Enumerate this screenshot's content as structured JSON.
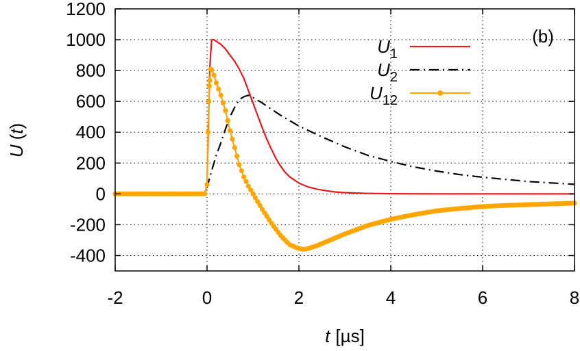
{
  "chart_data": {
    "type": "line",
    "annotation": "(b)",
    "xlabel_var": "t",
    "xlabel_unit": "[µs]",
    "ylabel_var": "U",
    "ylabel_arg": "(t)",
    "xlim": [
      -2,
      8
    ],
    "ylim": [
      -500,
      1200
    ],
    "xticks": [
      -2,
      0,
      2,
      4,
      6,
      8
    ],
    "yticks": [
      -400,
      -200,
      0,
      200,
      400,
      600,
      800,
      1000,
      1200
    ],
    "grid": true,
    "legend_position": "top-right",
    "series": [
      {
        "name_base": "U",
        "name_sub": "1",
        "color": "#e41a1c",
        "style": "solid",
        "x": [
          -2,
          -0.05,
          0,
          0.03,
          0.06,
          0.1,
          0.15,
          0.2,
          0.3,
          0.4,
          0.5,
          0.6,
          0.7,
          0.8,
          0.9,
          1.0,
          1.1,
          1.2,
          1.3,
          1.4,
          1.5,
          1.6,
          1.7,
          1.8,
          1.9,
          2.0,
          2.2,
          2.4,
          2.6,
          2.8,
          3.0,
          3.5,
          4.0,
          5.0,
          6.0,
          8.0
        ],
        "y": [
          0,
          0,
          60,
          450,
          820,
          1000,
          1000,
          990,
          970,
          940,
          900,
          860,
          810,
          750,
          670,
          590,
          510,
          430,
          355,
          290,
          230,
          180,
          140,
          110,
          90,
          70,
          45,
          30,
          20,
          12,
          8,
          3,
          1,
          0,
          0,
          0
        ]
      },
      {
        "name_base": "U",
        "name_sub": "2",
        "color": "#000000",
        "style": "dash-dot",
        "x": [
          -2,
          -0.05,
          0,
          0.1,
          0.2,
          0.3,
          0.4,
          0.5,
          0.6,
          0.7,
          0.8,
          0.9,
          1.0,
          1.2,
          1.4,
          1.6,
          1.8,
          2.0,
          2.5,
          3.0,
          3.5,
          4.0,
          4.5,
          5.0,
          5.5,
          6.0,
          7.0,
          8.0
        ],
        "y": [
          0,
          0,
          40,
          150,
          250,
          330,
          420,
          500,
          560,
          610,
          630,
          640,
          625,
          590,
          550,
          510,
          475,
          440,
          370,
          305,
          250,
          210,
          175,
          148,
          125,
          108,
          80,
          62
        ]
      },
      {
        "name_base": "U",
        "name_sub": "12",
        "color": "#ffa500",
        "style": "line-points",
        "x": [
          -2,
          -0.05,
          0,
          0.02,
          0.05,
          0.08,
          0.12,
          0.16,
          0.2,
          0.3,
          0.4,
          0.5,
          0.6,
          0.7,
          0.8,
          0.9,
          1.0,
          1.2,
          1.4,
          1.6,
          1.8,
          2.0,
          2.1,
          2.2,
          2.4,
          2.6,
          2.8,
          3.0,
          3.5,
          4.0,
          4.5,
          5.0,
          5.5,
          6.0,
          6.5,
          7.0,
          7.5,
          8.0
        ],
        "y": [
          0,
          0,
          60,
          400,
          700,
          810,
          800,
          760,
          720,
          640,
          540,
          410,
          300,
          190,
          110,
          50,
          0,
          -100,
          -190,
          -270,
          -330,
          -355,
          -360,
          -355,
          -335,
          -310,
          -285,
          -260,
          -205,
          -165,
          -135,
          -110,
          -95,
          -82,
          -75,
          -70,
          -65,
          -60
        ]
      }
    ]
  }
}
